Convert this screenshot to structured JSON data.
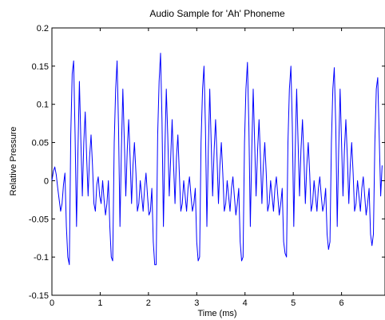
{
  "chart_data": {
    "type": "line",
    "title": "Audio Sample for 'Ah' Phoneme",
    "xlabel": "Time (ms)",
    "ylabel": "Relative Pressure",
    "xlim": [
      0,
      6.9
    ],
    "ylim": [
      -0.15,
      0.2
    ],
    "x_ticks": [
      "0",
      "1",
      "2",
      "3",
      "4",
      "5",
      "6"
    ],
    "y_ticks": [
      "-0.15",
      "-0.1",
      "-0.05",
      "0",
      "0.05",
      "0.1",
      "0.15",
      "0.2"
    ],
    "grid": false,
    "series": [
      {
        "color": "#0000ff",
        "period_ms": 0.92,
        "points": [
          [
            0.0,
            0.0
          ],
          [
            0.03,
            0.012
          ],
          [
            0.06,
            0.018
          ],
          [
            0.09,
            0.008
          ],
          [
            0.12,
            -0.01
          ],
          [
            0.15,
            -0.025
          ],
          [
            0.18,
            -0.04
          ],
          [
            0.21,
            -0.03
          ],
          [
            0.24,
            -0.005
          ],
          [
            0.27,
            0.01
          ],
          [
            0.3,
            -0.06
          ],
          [
            0.33,
            -0.1
          ],
          [
            0.36,
            -0.11
          ],
          [
            0.39,
            0.06
          ],
          [
            0.42,
            0.14
          ],
          [
            0.45,
            0.157
          ],
          [
            0.48,
            0.06
          ],
          [
            0.51,
            -0.06
          ],
          [
            0.54,
            0.04
          ],
          [
            0.57,
            0.13
          ],
          [
            0.6,
            0.05
          ],
          [
            0.63,
            -0.02
          ],
          [
            0.66,
            0.05
          ],
          [
            0.69,
            0.09
          ],
          [
            0.72,
            0.03
          ],
          [
            0.75,
            -0.02
          ],
          [
            0.78,
            0.03
          ],
          [
            0.81,
            0.06
          ],
          [
            0.84,
            0.02
          ],
          [
            0.87,
            -0.03
          ],
          [
            0.9,
            -0.04
          ],
          [
            0.93,
            -0.005
          ],
          [
            0.96,
            0.005
          ],
          [
            0.99,
            -0.02
          ],
          [
            1.02,
            -0.03
          ],
          [
            1.05,
            0.0
          ],
          [
            1.08,
            -0.025
          ],
          [
            1.11,
            -0.045
          ],
          [
            1.14,
            -0.03
          ],
          [
            1.17,
            0.0
          ],
          [
            1.2,
            -0.06
          ],
          [
            1.23,
            -0.1
          ],
          [
            1.26,
            -0.105
          ],
          [
            1.29,
            0.05
          ],
          [
            1.32,
            0.12
          ],
          [
            1.35,
            0.157
          ],
          [
            1.38,
            0.07
          ],
          [
            1.41,
            -0.06
          ],
          [
            1.44,
            0.04
          ],
          [
            1.47,
            0.12
          ],
          [
            1.5,
            0.05
          ],
          [
            1.53,
            -0.02
          ],
          [
            1.56,
            0.04
          ],
          [
            1.59,
            0.08
          ],
          [
            1.62,
            0.03
          ],
          [
            1.65,
            -0.03
          ],
          [
            1.68,
            0.02
          ],
          [
            1.71,
            0.05
          ],
          [
            1.74,
            0.01
          ],
          [
            1.77,
            -0.04
          ],
          [
            1.8,
            -0.03
          ],
          [
            1.83,
            0.0
          ],
          [
            1.86,
            -0.02
          ],
          [
            1.89,
            -0.04
          ],
          [
            1.92,
            -0.01
          ],
          [
            1.95,
            0.01
          ],
          [
            1.98,
            -0.02
          ],
          [
            2.01,
            -0.045
          ],
          [
            2.04,
            -0.04
          ],
          [
            2.07,
            -0.01
          ],
          [
            2.1,
            -0.08
          ],
          [
            2.13,
            -0.11
          ],
          [
            2.16,
            -0.11
          ],
          [
            2.19,
            0.06
          ],
          [
            2.22,
            0.13
          ],
          [
            2.25,
            0.167
          ],
          [
            2.28,
            0.08
          ],
          [
            2.31,
            -0.06
          ],
          [
            2.34,
            0.04
          ],
          [
            2.37,
            0.12
          ],
          [
            2.4,
            0.06
          ],
          [
            2.43,
            -0.02
          ],
          [
            2.46,
            0.03
          ],
          [
            2.49,
            0.08
          ],
          [
            2.52,
            0.02
          ],
          [
            2.55,
            -0.03
          ],
          [
            2.58,
            0.03
          ],
          [
            2.61,
            0.06
          ],
          [
            2.64,
            0.01
          ],
          [
            2.67,
            -0.04
          ],
          [
            2.7,
            -0.03
          ],
          [
            2.73,
            0.0
          ],
          [
            2.76,
            -0.02
          ],
          [
            2.79,
            -0.04
          ],
          [
            2.82,
            -0.01
          ],
          [
            2.85,
            0.005
          ],
          [
            2.88,
            -0.02
          ],
          [
            2.91,
            -0.04
          ],
          [
            2.94,
            -0.03
          ],
          [
            2.97,
            -0.01
          ],
          [
            3.0,
            -0.08
          ],
          [
            3.03,
            -0.105
          ],
          [
            3.06,
            -0.1
          ],
          [
            3.09,
            0.05
          ],
          [
            3.12,
            0.12
          ],
          [
            3.15,
            0.15
          ],
          [
            3.18,
            0.07
          ],
          [
            3.21,
            -0.06
          ],
          [
            3.24,
            0.04
          ],
          [
            3.27,
            0.12
          ],
          [
            3.3,
            0.05
          ],
          [
            3.33,
            -0.02
          ],
          [
            3.36,
            0.04
          ],
          [
            3.39,
            0.08
          ],
          [
            3.42,
            0.03
          ],
          [
            3.45,
            -0.03
          ],
          [
            3.48,
            0.02
          ],
          [
            3.51,
            0.05
          ],
          [
            3.54,
            0.01
          ],
          [
            3.57,
            -0.04
          ],
          [
            3.6,
            -0.03
          ],
          [
            3.63,
            0.0
          ],
          [
            3.66,
            -0.02
          ],
          [
            3.69,
            -0.04
          ],
          [
            3.72,
            -0.01
          ],
          [
            3.75,
            0.005
          ],
          [
            3.78,
            -0.02
          ],
          [
            3.81,
            -0.045
          ],
          [
            3.84,
            -0.03
          ],
          [
            3.87,
            -0.01
          ],
          [
            3.9,
            -0.08
          ],
          [
            3.93,
            -0.105
          ],
          [
            3.96,
            -0.1
          ],
          [
            3.99,
            0.05
          ],
          [
            4.02,
            0.12
          ],
          [
            4.05,
            0.155
          ],
          [
            4.08,
            0.07
          ],
          [
            4.11,
            -0.06
          ],
          [
            4.14,
            0.04
          ],
          [
            4.17,
            0.12
          ],
          [
            4.2,
            0.05
          ],
          [
            4.23,
            -0.02
          ],
          [
            4.26,
            0.04
          ],
          [
            4.29,
            0.08
          ],
          [
            4.32,
            0.03
          ],
          [
            4.35,
            -0.03
          ],
          [
            4.38,
            0.02
          ],
          [
            4.41,
            0.05
          ],
          [
            4.44,
            0.01
          ],
          [
            4.47,
            -0.04
          ],
          [
            4.5,
            -0.03
          ],
          [
            4.53,
            0.0
          ],
          [
            4.56,
            -0.02
          ],
          [
            4.59,
            -0.04
          ],
          [
            4.62,
            -0.01
          ],
          [
            4.65,
            0.005
          ],
          [
            4.68,
            -0.02
          ],
          [
            4.71,
            -0.045
          ],
          [
            4.74,
            -0.03
          ],
          [
            4.77,
            -0.01
          ],
          [
            4.8,
            -0.08
          ],
          [
            4.83,
            -0.095
          ],
          [
            4.86,
            -0.1
          ],
          [
            4.89,
            0.05
          ],
          [
            4.92,
            0.12
          ],
          [
            4.95,
            0.15
          ],
          [
            4.98,
            0.07
          ],
          [
            5.01,
            -0.06
          ],
          [
            5.04,
            0.04
          ],
          [
            5.07,
            0.12
          ],
          [
            5.1,
            0.05
          ],
          [
            5.13,
            -0.02
          ],
          [
            5.16,
            0.04
          ],
          [
            5.19,
            0.08
          ],
          [
            5.22,
            0.03
          ],
          [
            5.25,
            -0.03
          ],
          [
            5.28,
            0.02
          ],
          [
            5.31,
            0.05
          ],
          [
            5.34,
            0.01
          ],
          [
            5.37,
            -0.04
          ],
          [
            5.4,
            -0.03
          ],
          [
            5.43,
            0.0
          ],
          [
            5.46,
            -0.02
          ],
          [
            5.49,
            -0.04
          ],
          [
            5.52,
            -0.01
          ],
          [
            5.55,
            0.005
          ],
          [
            5.58,
            -0.02
          ],
          [
            5.61,
            -0.04
          ],
          [
            5.64,
            -0.03
          ],
          [
            5.67,
            -0.01
          ],
          [
            5.7,
            -0.07
          ],
          [
            5.73,
            -0.09
          ],
          [
            5.76,
            -0.08
          ],
          [
            5.79,
            0.05
          ],
          [
            5.82,
            0.12
          ],
          [
            5.85,
            0.148
          ],
          [
            5.88,
            0.07
          ],
          [
            5.91,
            -0.06
          ],
          [
            5.94,
            0.04
          ],
          [
            5.97,
            0.12
          ],
          [
            6.0,
            0.05
          ],
          [
            6.03,
            -0.02
          ],
          [
            6.06,
            0.04
          ],
          [
            6.09,
            0.08
          ],
          [
            6.12,
            0.03
          ],
          [
            6.15,
            -0.03
          ],
          [
            6.18,
            0.02
          ],
          [
            6.21,
            0.05
          ],
          [
            6.24,
            0.01
          ],
          [
            6.27,
            -0.04
          ],
          [
            6.3,
            -0.03
          ],
          [
            6.33,
            0.0
          ],
          [
            6.36,
            -0.02
          ],
          [
            6.39,
            -0.04
          ],
          [
            6.42,
            -0.01
          ],
          [
            6.45,
            0.005
          ],
          [
            6.48,
            -0.02
          ],
          [
            6.51,
            -0.045
          ],
          [
            6.54,
            -0.03
          ],
          [
            6.57,
            -0.01
          ],
          [
            6.6,
            -0.07
          ],
          [
            6.63,
            -0.085
          ],
          [
            6.66,
            -0.07
          ],
          [
            6.69,
            0.05
          ],
          [
            6.72,
            0.12
          ],
          [
            6.75,
            0.135
          ],
          [
            6.78,
            0.06
          ],
          [
            6.81,
            -0.02
          ],
          [
            6.84,
            0.02
          ]
        ]
      }
    ]
  }
}
